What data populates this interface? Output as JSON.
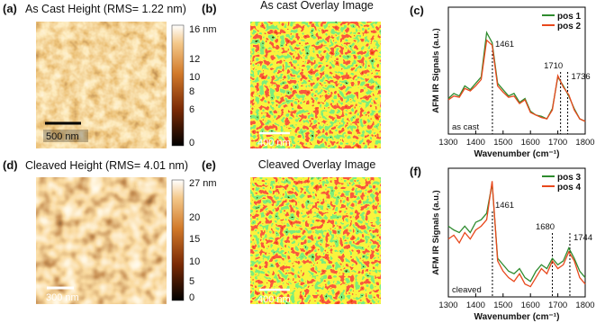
{
  "panels": [
    {
      "label": "(a)",
      "title": "As Cast Height (RMS= 1.22 nm)",
      "scale_bar": "500 nm",
      "colorbar": [
        "16 nm",
        "12",
        "10",
        "8",
        "6",
        "0"
      ]
    },
    {
      "label": "(b)",
      "title": "As cast Overlay Image",
      "scale_bar": "400 nm"
    },
    {
      "label": "(d)",
      "title": "Cleaved Height (RMS= 4.01 nm)",
      "scale_bar": "300 nm",
      "colorbar": [
        "27 nm",
        "20",
        "15",
        "10",
        "5",
        "0"
      ]
    },
    {
      "label": "(e)",
      "title": "Cleaved Overlay Image",
      "scale_bar": "400 nm"
    }
  ],
  "chart_data": [
    {
      "type": "line",
      "label": "(c)",
      "xlabel": "Wavenumber (cm⁻¹)",
      "ylabel": "AFM IR Signals (a.u.)",
      "x": [
        1300,
        1320,
        1340,
        1360,
        1380,
        1400,
        1420,
        1440,
        1460,
        1480,
        1500,
        1520,
        1540,
        1560,
        1580,
        1600,
        1620,
        1640,
        1660,
        1680,
        1700,
        1720,
        1740,
        1760,
        1780,
        1800
      ],
      "series": [
        {
          "name": "pos 1",
          "color": "#2e8b2e",
          "values": [
            0.28,
            0.32,
            0.3,
            0.38,
            0.35,
            0.4,
            0.45,
            0.8,
            0.72,
            0.4,
            0.35,
            0.3,
            0.32,
            0.25,
            0.28,
            0.18,
            0.15,
            0.14,
            0.12,
            0.2,
            0.45,
            0.38,
            0.3,
            0.2,
            0.12,
            0.1
          ]
        },
        {
          "name": "pos 2",
          "color": "#e8481c",
          "values": [
            0.27,
            0.3,
            0.29,
            0.36,
            0.34,
            0.38,
            0.43,
            0.74,
            0.7,
            0.38,
            0.33,
            0.29,
            0.3,
            0.24,
            0.27,
            0.17,
            0.15,
            0.13,
            0.12,
            0.19,
            0.46,
            0.37,
            0.31,
            0.19,
            0.12,
            0.1
          ]
        }
      ],
      "xlim": [
        1300,
        1800
      ],
      "xticks": [
        1300,
        1400,
        1500,
        1600,
        1700,
        1800
      ],
      "ylim": [
        0,
        1
      ],
      "markers": [
        1461,
        1710,
        1736
      ],
      "note": "as cast"
    },
    {
      "type": "line",
      "label": "(f)",
      "xlabel": "Wavenumber (cm⁻¹)",
      "ylabel": "AFM IR Signals (a.u.)",
      "x": [
        1300,
        1320,
        1340,
        1360,
        1380,
        1400,
        1420,
        1440,
        1460,
        1480,
        1500,
        1520,
        1540,
        1560,
        1580,
        1600,
        1620,
        1640,
        1660,
        1680,
        1700,
        1720,
        1740,
        1760,
        1780,
        1800
      ],
      "series": [
        {
          "name": "pos 3",
          "color": "#2e8b2e",
          "values": [
            0.55,
            0.52,
            0.5,
            0.55,
            0.5,
            0.58,
            0.6,
            0.65,
            0.88,
            0.3,
            0.25,
            0.2,
            0.18,
            0.22,
            0.15,
            0.12,
            0.2,
            0.25,
            0.22,
            0.3,
            0.25,
            0.28,
            0.38,
            0.3,
            0.2,
            0.15
          ]
        },
        {
          "name": "pos 4",
          "color": "#e8481c",
          "values": [
            0.45,
            0.48,
            0.42,
            0.5,
            0.45,
            0.52,
            0.55,
            0.6,
            0.9,
            0.28,
            0.2,
            0.15,
            0.12,
            0.18,
            0.1,
            0.08,
            0.15,
            0.22,
            0.18,
            0.28,
            0.22,
            0.25,
            0.35,
            0.28,
            0.15,
            0.1
          ]
        }
      ],
      "xlim": [
        1300,
        1800
      ],
      "xticks": [
        1300,
        1400,
        1500,
        1600,
        1700,
        1800
      ],
      "ylim": [
        0,
        1
      ],
      "markers": [
        1461,
        1680,
        1744
      ],
      "note": "cleaved"
    }
  ]
}
